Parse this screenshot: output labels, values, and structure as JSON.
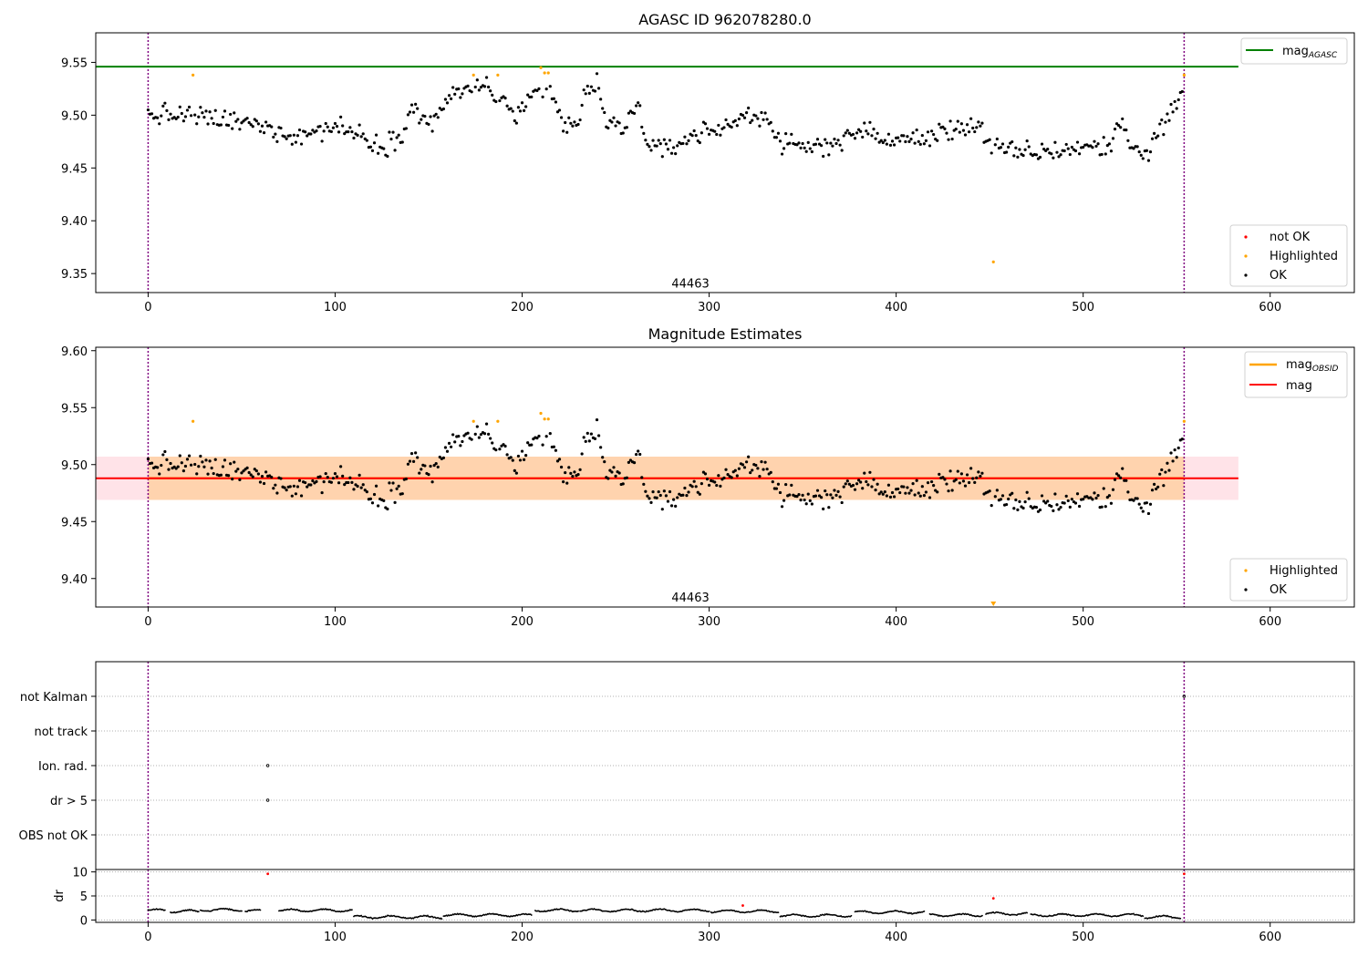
{
  "colors": {
    "ok": "#000000",
    "highlighted": "#ffa500",
    "not_ok": "#ff0000",
    "agasc_line": "#008000",
    "obsid_line": "#ffa500",
    "mag_line": "#ff0000",
    "band_pink": "#ffc0cb",
    "band_orange": "#ffa500",
    "boundary": "#800080",
    "grid": "#b0b0b0"
  },
  "chart_data": [
    {
      "type": "scatter",
      "title": "AGASC ID 962078280.0",
      "xlim": [
        -28,
        645
      ],
      "ylim": [
        9.332,
        9.578
      ],
      "xticks": [
        0,
        100,
        200,
        300,
        400,
        500,
        600
      ],
      "yticks": [
        9.35,
        9.4,
        9.45,
        9.5,
        9.55
      ],
      "obsid_label": "44463",
      "obsid_label_at": [
        290,
        9.341
      ],
      "boundaries": [
        0,
        554
      ],
      "hline": {
        "name": "mag_AGASC",
        "value": 9.546,
        "x_range": [
          -28,
          583
        ]
      },
      "legend_upper": {
        "position": "upper right",
        "entries": [
          {
            "base": "mag",
            "sub": "AGASC"
          }
        ]
      },
      "legend_lower": {
        "position": "lower right",
        "entries": [
          "not OK",
          "Highlighted",
          "OK"
        ]
      },
      "series": [
        {
          "name": "OK",
          "description": "about 555 magnitude samples, one per index 0-554",
          "trend": [
            [
              0,
              9.5
            ],
            [
              20,
              9.5
            ],
            [
              60,
              9.49
            ],
            [
              80,
              9.48
            ],
            [
              100,
              9.49
            ],
            [
              115,
              9.48
            ],
            [
              125,
              9.47
            ],
            [
              135,
              9.48
            ],
            [
              140,
              9.51
            ],
            [
              150,
              9.49
            ],
            [
              158,
              9.51
            ],
            [
              165,
              9.52
            ],
            [
              180,
              9.53
            ],
            [
              195,
              9.5
            ],
            [
              210,
              9.52
            ],
            [
              215,
              9.52
            ],
            [
              222,
              9.49
            ],
            [
              230,
              9.49
            ],
            [
              233,
              9.52
            ],
            [
              240,
              9.53
            ],
            [
              245,
              9.49
            ],
            [
              255,
              9.49
            ],
            [
              262,
              9.51
            ],
            [
              268,
              9.47
            ],
            [
              275,
              9.465
            ],
            [
              290,
              9.48
            ],
            [
              310,
              9.49
            ],
            [
              320,
              9.5
            ],
            [
              330,
              9.5
            ],
            [
              340,
              9.47
            ],
            [
              360,
              9.47
            ],
            [
              380,
              9.485
            ],
            [
              400,
              9.475
            ],
            [
              420,
              9.48
            ],
            [
              435,
              9.49
            ],
            [
              445,
              9.49
            ],
            [
              450,
              9.47
            ],
            [
              460,
              9.465
            ],
            [
              480,
              9.465
            ],
            [
              500,
              9.47
            ],
            [
              515,
              9.47
            ],
            [
              520,
              9.5
            ],
            [
              525,
              9.47
            ],
            [
              535,
              9.465
            ],
            [
              545,
              9.5
            ],
            [
              554,
              9.52
            ]
          ]
        },
        {
          "name": "Highlighted",
          "points": [
            [
              24,
              9.538
            ],
            [
              174,
              9.538
            ],
            [
              187,
              9.538
            ],
            [
              210,
              9.545
            ],
            [
              212,
              9.54
            ],
            [
              214,
              9.54
            ],
            [
              452,
              9.361
            ],
            [
              554,
              9.538
            ]
          ]
        }
      ]
    },
    {
      "type": "scatter",
      "title": "Magnitude Estimates",
      "xlim": [
        -28,
        645
      ],
      "ylim": [
        9.375,
        9.603
      ],
      "xticks": [
        0,
        100,
        200,
        300,
        400,
        500,
        600
      ],
      "yticks": [
        9.4,
        9.45,
        9.5,
        9.55,
        9.6
      ],
      "obsid_label": "44463",
      "obsid_label_at": [
        290,
        9.384
      ],
      "boundaries": [
        0,
        554
      ],
      "mag_line": {
        "value": 9.488
      },
      "mag_band": [
        9.469,
        9.507
      ],
      "obsid_band": [
        9.469,
        9.507
      ],
      "legend_upper": {
        "position": "upper right",
        "entries": [
          {
            "base": "mag",
            "sub": "OBSID"
          },
          {
            "base": "mag",
            "sub": ""
          }
        ]
      },
      "legend_lower": {
        "position": "lower right",
        "entries": [
          "Highlighted",
          "OK"
        ]
      },
      "series": [
        {
          "name": "Highlighted",
          "points": [
            [
              24,
              9.538
            ],
            [
              174,
              9.538
            ],
            [
              187,
              9.538
            ],
            [
              210,
              9.545
            ],
            [
              212,
              9.54
            ],
            [
              214,
              9.54
            ],
            [
              554,
              9.538
            ]
          ],
          "offscale_marker_x": 452
        }
      ]
    },
    {
      "type": "scatter",
      "title": "",
      "xlim": [
        -28,
        645
      ],
      "boundaries": [
        0,
        554
      ],
      "flags": [
        "not Kalman",
        "not track",
        "Ion. rad.",
        "dr > 5",
        "OBS not OK"
      ],
      "flag_points": [
        {
          "flag": "Ion. rad.",
          "x": 64
        },
        {
          "flag": "dr > 5",
          "x": 64
        },
        {
          "flag": "not Kalman",
          "x": 554
        }
      ]
    },
    {
      "type": "scatter",
      "title": "",
      "ylabel": "dr",
      "xlim": [
        -28,
        645
      ],
      "ylim": [
        -0.5,
        10.5
      ],
      "xticks": [
        0,
        100,
        200,
        300,
        400,
        500,
        600
      ],
      "yticks": [
        0,
        5,
        10
      ],
      "boundaries": [
        0,
        554
      ],
      "segments": [
        [
          0,
          9,
          2.0
        ],
        [
          12,
          27,
          1.8
        ],
        [
          28,
          50,
          2.1
        ],
        [
          52,
          60,
          1.9
        ],
        [
          70,
          109,
          2.0
        ],
        [
          110,
          157,
          0.6
        ],
        [
          158,
          205,
          1.0
        ],
        [
          207,
          230,
          2.0
        ],
        [
          231,
          300,
          2.0
        ],
        [
          301,
          337,
          1.8
        ],
        [
          338,
          376,
          0.9
        ],
        [
          378,
          415,
          1.6
        ],
        [
          418,
          446,
          1.0
        ],
        [
          448,
          470,
          1.3
        ],
        [
          472,
          532,
          1.0
        ],
        [
          533,
          552,
          0.6
        ]
      ],
      "not_ok_points": [
        [
          64,
          9.6
        ],
        [
          318,
          3.0
        ],
        [
          452,
          4.5
        ],
        [
          554,
          9.6
        ]
      ]
    }
  ]
}
